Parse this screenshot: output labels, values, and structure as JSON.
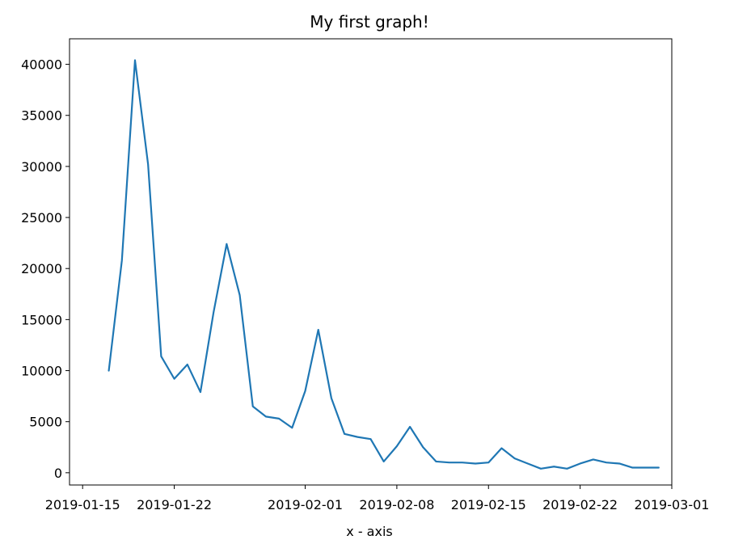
{
  "chart_data": {
    "type": "line",
    "title": "My first graph!",
    "xlabel": "x - axis",
    "ylabel": "",
    "x_type": "date",
    "xlim": [
      "2019-01-14",
      "2019-03-01"
    ],
    "ylim": [
      -1200,
      42500
    ],
    "x_ticks": [
      "2019-01-15",
      "2019-01-22",
      "2019-02-01",
      "2019-02-08",
      "2019-02-15",
      "2019-02-22",
      "2019-03-01"
    ],
    "y_ticks": [
      0,
      5000,
      10000,
      15000,
      20000,
      25000,
      30000,
      35000,
      40000
    ],
    "grid": false,
    "line_color": "#1f77b4",
    "x": [
      "2019-01-17",
      "2019-01-18",
      "2019-01-19",
      "2019-01-20",
      "2019-01-21",
      "2019-01-22",
      "2019-01-23",
      "2019-01-24",
      "2019-01-25",
      "2019-01-26",
      "2019-01-27",
      "2019-01-28",
      "2019-01-29",
      "2019-01-30",
      "2019-01-31",
      "2019-02-01",
      "2019-02-02",
      "2019-02-03",
      "2019-02-04",
      "2019-02-05",
      "2019-02-06",
      "2019-02-07",
      "2019-02-08",
      "2019-02-09",
      "2019-02-10",
      "2019-02-11",
      "2019-02-12",
      "2019-02-13",
      "2019-02-14",
      "2019-02-15",
      "2019-02-16",
      "2019-02-17",
      "2019-02-18",
      "2019-02-19",
      "2019-02-20",
      "2019-02-21",
      "2019-02-22",
      "2019-02-23",
      "2019-02-24",
      "2019-02-25",
      "2019-02-26",
      "2019-02-27",
      "2019-02-28"
    ],
    "y": [
      10000,
      20800,
      40400,
      30200,
      11400,
      9200,
      10600,
      7900,
      15700,
      22400,
      17400,
      6500,
      5500,
      5300,
      4400,
      8000,
      14000,
      7300,
      3800,
      3500,
      3300,
      1100,
      2600,
      4500,
      2500,
      1100,
      1000,
      1000,
      900,
      1000,
      2400,
      1400,
      900,
      400,
      600,
      400,
      900,
      1300,
      1000,
      900,
      500,
      500,
      500
    ]
  }
}
